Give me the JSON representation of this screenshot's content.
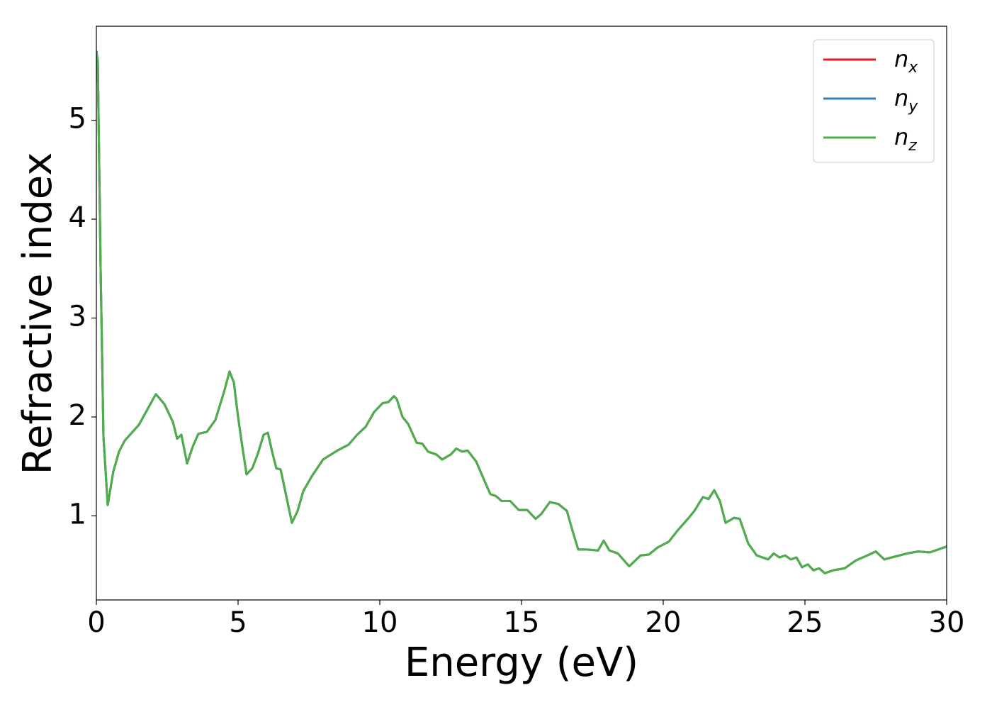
{
  "chart_data": {
    "type": "line",
    "xlabel": "Energy (eV)",
    "ylabel": "Refractive index",
    "x": [
      0.0,
      0.05,
      0.15,
      0.25,
      0.4,
      0.6,
      0.8,
      1.0,
      1.5,
      2.0,
      2.1,
      2.4,
      2.7,
      2.85,
      3.0,
      3.2,
      3.4,
      3.6,
      3.9,
      4.2,
      4.5,
      4.7,
      4.85,
      5.0,
      5.15,
      5.3,
      5.5,
      5.7,
      5.9,
      6.05,
      6.2,
      6.35,
      6.5,
      6.7,
      6.9,
      7.1,
      7.3,
      7.6,
      8.0,
      8.5,
      8.9,
      9.2,
      9.5,
      9.8,
      10.1,
      10.3,
      10.5,
      10.6,
      10.8,
      11.0,
      11.3,
      11.5,
      11.7,
      12.0,
      12.2,
      12.5,
      12.7,
      12.9,
      13.1,
      13.4,
      13.7,
      13.9,
      14.1,
      14.3,
      14.6,
      14.9,
      15.2,
      15.5,
      15.7,
      16.0,
      16.3,
      16.6,
      16.8,
      17.0,
      17.3,
      17.7,
      17.9,
      18.1,
      18.4,
      18.8,
      19.2,
      19.5,
      19.8,
      20.2,
      20.5,
      20.9,
      21.1,
      21.4,
      21.6,
      21.8,
      22.0,
      22.2,
      22.5,
      22.7,
      23.0,
      23.3,
      23.7,
      23.9,
      24.1,
      24.3,
      24.5,
      24.7,
      24.9,
      25.1,
      25.3,
      25.5,
      25.7,
      26.0,
      26.4,
      26.8,
      27.2,
      27.5,
      27.8,
      28.2,
      28.6,
      29.0,
      29.4,
      30.0
    ],
    "series": [
      {
        "name": "nx",
        "color": "#e41a1c",
        "values": [
          5.7,
          5.6,
          3.5,
          1.8,
          1.11,
          1.45,
          1.65,
          1.76,
          1.92,
          2.18,
          2.23,
          2.13,
          1.95,
          1.78,
          1.82,
          1.53,
          1.7,
          1.83,
          1.85,
          1.97,
          2.25,
          2.46,
          2.35,
          2.0,
          1.7,
          1.42,
          1.48,
          1.63,
          1.82,
          1.84,
          1.65,
          1.48,
          1.47,
          1.2,
          0.93,
          1.05,
          1.25,
          1.4,
          1.57,
          1.66,
          1.72,
          1.82,
          1.9,
          2.05,
          2.14,
          2.15,
          2.21,
          2.18,
          2.0,
          1.93,
          1.74,
          1.73,
          1.65,
          1.62,
          1.57,
          1.62,
          1.68,
          1.65,
          1.66,
          1.55,
          1.35,
          1.22,
          1.2,
          1.15,
          1.15,
          1.06,
          1.06,
          0.97,
          1.02,
          1.14,
          1.12,
          1.05,
          0.85,
          0.66,
          0.66,
          0.65,
          0.75,
          0.65,
          0.62,
          0.49,
          0.6,
          0.61,
          0.68,
          0.74,
          0.85,
          0.98,
          1.05,
          1.19,
          1.17,
          1.26,
          1.15,
          0.93,
          0.98,
          0.97,
          0.72,
          0.6,
          0.56,
          0.62,
          0.58,
          0.6,
          0.56,
          0.58,
          0.48,
          0.51,
          0.45,
          0.47,
          0.42,
          0.45,
          0.47,
          0.55,
          0.6,
          0.64,
          0.56,
          0.59,
          0.62,
          0.64,
          0.63,
          0.69
        ]
      },
      {
        "name": "ny",
        "color": "#377eb8",
        "values": [
          5.7,
          5.6,
          3.5,
          1.8,
          1.11,
          1.45,
          1.65,
          1.76,
          1.92,
          2.18,
          2.23,
          2.13,
          1.95,
          1.78,
          1.82,
          1.53,
          1.7,
          1.83,
          1.85,
          1.97,
          2.25,
          2.46,
          2.35,
          2.0,
          1.7,
          1.42,
          1.48,
          1.63,
          1.82,
          1.84,
          1.65,
          1.48,
          1.47,
          1.2,
          0.93,
          1.05,
          1.25,
          1.4,
          1.57,
          1.66,
          1.72,
          1.82,
          1.9,
          2.05,
          2.14,
          2.15,
          2.21,
          2.18,
          2.0,
          1.93,
          1.74,
          1.73,
          1.65,
          1.62,
          1.57,
          1.62,
          1.68,
          1.65,
          1.66,
          1.55,
          1.35,
          1.22,
          1.2,
          1.15,
          1.15,
          1.06,
          1.06,
          0.97,
          1.02,
          1.14,
          1.12,
          1.05,
          0.85,
          0.66,
          0.66,
          0.65,
          0.75,
          0.65,
          0.62,
          0.49,
          0.6,
          0.61,
          0.68,
          0.74,
          0.85,
          0.98,
          1.05,
          1.19,
          1.17,
          1.26,
          1.15,
          0.93,
          0.98,
          0.97,
          0.72,
          0.6,
          0.56,
          0.62,
          0.58,
          0.6,
          0.56,
          0.58,
          0.48,
          0.51,
          0.45,
          0.47,
          0.42,
          0.45,
          0.47,
          0.55,
          0.6,
          0.64,
          0.56,
          0.59,
          0.62,
          0.64,
          0.63,
          0.69
        ]
      },
      {
        "name": "nz",
        "color": "#4daf4a",
        "values": [
          5.7,
          5.6,
          3.5,
          1.8,
          1.11,
          1.45,
          1.65,
          1.76,
          1.92,
          2.18,
          2.23,
          2.13,
          1.95,
          1.78,
          1.82,
          1.53,
          1.7,
          1.83,
          1.85,
          1.97,
          2.25,
          2.46,
          2.35,
          2.0,
          1.7,
          1.42,
          1.48,
          1.63,
          1.82,
          1.84,
          1.65,
          1.48,
          1.47,
          1.2,
          0.93,
          1.05,
          1.25,
          1.4,
          1.57,
          1.66,
          1.72,
          1.82,
          1.9,
          2.05,
          2.14,
          2.15,
          2.21,
          2.18,
          2.0,
          1.93,
          1.74,
          1.73,
          1.65,
          1.62,
          1.57,
          1.62,
          1.68,
          1.65,
          1.66,
          1.55,
          1.35,
          1.22,
          1.2,
          1.15,
          1.15,
          1.06,
          1.06,
          0.97,
          1.02,
          1.14,
          1.12,
          1.05,
          0.85,
          0.66,
          0.66,
          0.65,
          0.75,
          0.65,
          0.62,
          0.49,
          0.6,
          0.61,
          0.68,
          0.74,
          0.85,
          0.98,
          1.05,
          1.19,
          1.17,
          1.26,
          1.15,
          0.93,
          0.98,
          0.97,
          0.72,
          0.6,
          0.56,
          0.62,
          0.58,
          0.6,
          0.56,
          0.58,
          0.48,
          0.51,
          0.45,
          0.47,
          0.42,
          0.45,
          0.47,
          0.55,
          0.6,
          0.64,
          0.56,
          0.59,
          0.62,
          0.64,
          0.63,
          0.69
        ]
      }
    ],
    "xlim": [
      0,
      30
    ],
    "xticks": [
      0,
      5,
      10,
      15,
      20,
      25,
      30
    ],
    "ylim": [
      0.15,
      5.95
    ],
    "yticks": [
      1,
      2,
      3,
      4,
      5
    ],
    "grid": false,
    "legend": "upper right"
  }
}
